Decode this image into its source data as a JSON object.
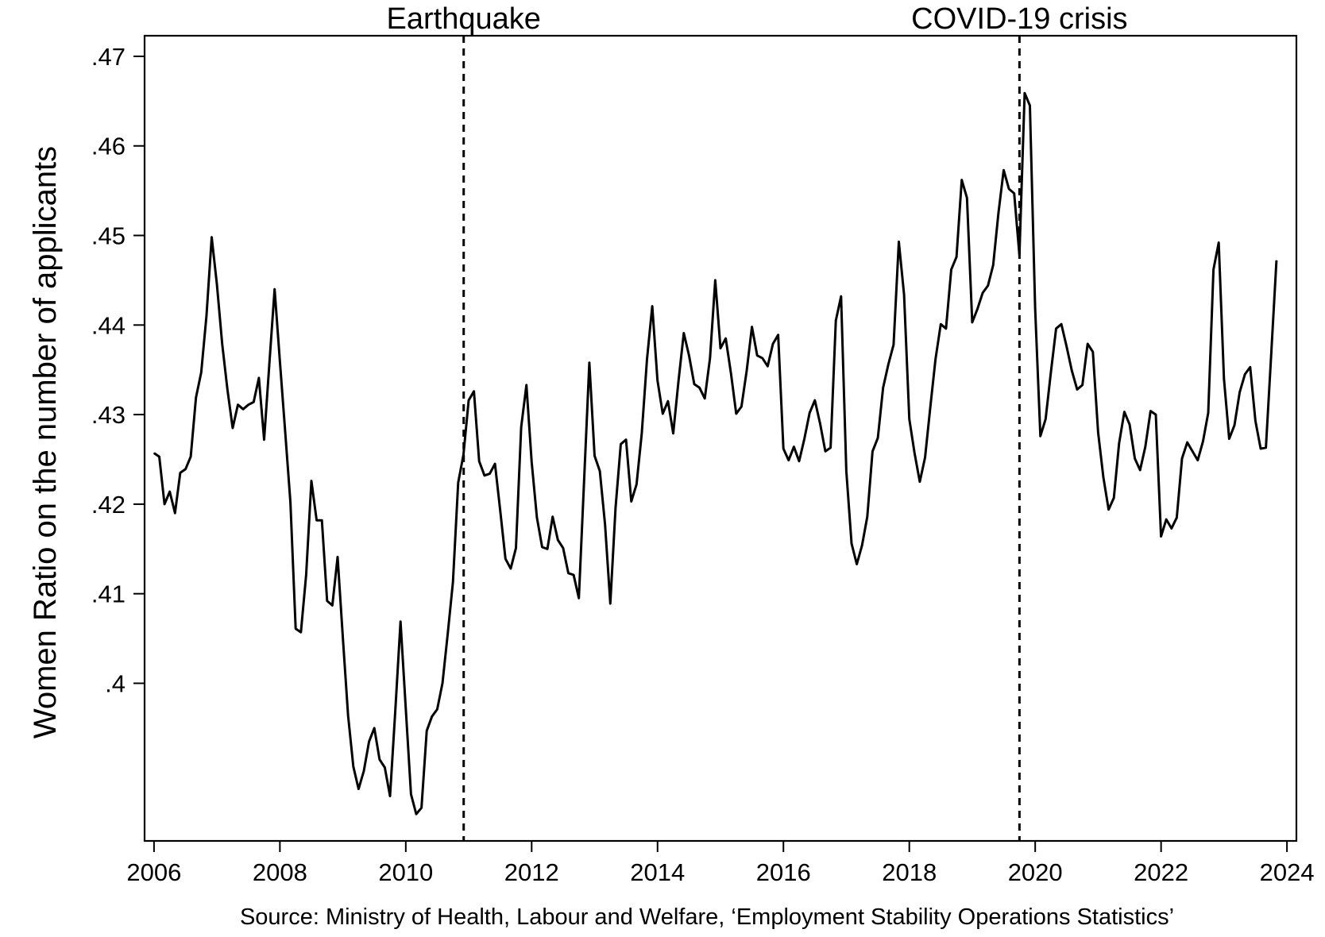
{
  "chart_data": {
    "type": "line",
    "title": "",
    "xlabel": "",
    "ylabel": "Women Ratio on the number of applicants",
    "source_note": "Source: Ministry of Health, Labour and Welfare, ‘Employment Stability Operations Statistics’",
    "xlim": [
      2005.85,
      2024.15
    ],
    "ylim": [
      0.3824,
      0.4723
    ],
    "x_ticks": [
      {
        "value": 2006,
        "label": "2006"
      },
      {
        "value": 2008,
        "label": "2008"
      },
      {
        "value": 2010,
        "label": "2010"
      },
      {
        "value": 2012,
        "label": "2012"
      },
      {
        "value": 2014,
        "label": "2014"
      },
      {
        "value": 2016,
        "label": "2016"
      },
      {
        "value": 2018,
        "label": "2018"
      },
      {
        "value": 2020,
        "label": "2020"
      },
      {
        "value": 2022,
        "label": "2022"
      },
      {
        "value": 2024,
        "label": "2024"
      }
    ],
    "y_ticks": [
      {
        "value": 0.4,
        "label": ".4"
      },
      {
        "value": 0.41,
        "label": ".41"
      },
      {
        "value": 0.42,
        "label": ".42"
      },
      {
        "value": 0.43,
        "label": ".43"
      },
      {
        "value": 0.44,
        "label": ".44"
      },
      {
        "value": 0.45,
        "label": ".45"
      },
      {
        "value": 0.46,
        "label": ".46"
      },
      {
        "value": 0.47,
        "label": ".47"
      }
    ],
    "grid": false,
    "legend": "none",
    "annotations": [
      {
        "label": "Earthquake",
        "x": 2010.92,
        "style": "dashed vertical line"
      },
      {
        "label": "COVID-19 crisis",
        "x": 2019.75,
        "style": "dashed vertical line"
      }
    ],
    "series": [
      {
        "color": "#000000",
        "x_start": 2006.0,
        "x_step": 0.08333,
        "values": [
          0.4257,
          0.4253,
          0.42,
          0.4214,
          0.419,
          0.4235,
          0.4239,
          0.4253,
          0.4319,
          0.4347,
          0.441,
          0.4498,
          0.4445,
          0.4379,
          0.4328,
          0.4285,
          0.4311,
          0.4306,
          0.4311,
          0.4314,
          0.4341,
          0.4272,
          0.4357,
          0.444,
          0.436,
          0.4281,
          0.4202,
          0.4061,
          0.4057,
          0.4121,
          0.4226,
          0.4182,
          0.4182,
          0.4092,
          0.4087,
          0.4141,
          0.4051,
          0.3964,
          0.3907,
          0.3882,
          0.3902,
          0.3935,
          0.395,
          0.3915,
          0.3906,
          0.3874,
          0.3969,
          0.4069,
          0.3972,
          0.3876,
          0.3854,
          0.3861,
          0.3947,
          0.3963,
          0.3971,
          0.4,
          0.4055,
          0.4113,
          0.4224,
          0.4255,
          0.4316,
          0.4326,
          0.4248,
          0.4232,
          0.4234,
          0.4245,
          0.4193,
          0.4139,
          0.4128,
          0.4151,
          0.4286,
          0.4333,
          0.4247,
          0.4185,
          0.4152,
          0.415,
          0.4186,
          0.416,
          0.4151,
          0.4123,
          0.4121,
          0.4095,
          0.4226,
          0.4358,
          0.4254,
          0.4237,
          0.4177,
          0.4089,
          0.4196,
          0.4267,
          0.4272,
          0.4203,
          0.4222,
          0.4279,
          0.4362,
          0.4421,
          0.4338,
          0.4301,
          0.4315,
          0.4279,
          0.4338,
          0.4391,
          0.4366,
          0.4334,
          0.433,
          0.4318,
          0.4363,
          0.445,
          0.4374,
          0.4385,
          0.4346,
          0.4301,
          0.4309,
          0.4349,
          0.4398,
          0.4366,
          0.4363,
          0.4354,
          0.4379,
          0.4389,
          0.4262,
          0.4249,
          0.4264,
          0.4248,
          0.4273,
          0.4302,
          0.4316,
          0.429,
          0.4259,
          0.4263,
          0.4405,
          0.4432,
          0.4237,
          0.4156,
          0.4133,
          0.4154,
          0.4186,
          0.4259,
          0.4274,
          0.433,
          0.4356,
          0.4378,
          0.4493,
          0.4434,
          0.4295,
          0.4257,
          0.4225,
          0.4252,
          0.4308,
          0.4362,
          0.4401,
          0.4396,
          0.4462,
          0.4476,
          0.4562,
          0.4542,
          0.4403,
          0.4418,
          0.4436,
          0.4444,
          0.4467,
          0.4525,
          0.4573,
          0.4552,
          0.4547,
          0.4478,
          0.4659,
          0.4645,
          0.4419,
          0.4276,
          0.4295,
          0.4347,
          0.4396,
          0.4401,
          0.4376,
          0.4349,
          0.4328,
          0.4333,
          0.4379,
          0.437,
          0.428,
          0.423,
          0.4194,
          0.4207,
          0.4268,
          0.4303,
          0.4289,
          0.4251,
          0.4238,
          0.4264,
          0.4304,
          0.43,
          0.4164,
          0.4183,
          0.4173,
          0.4185,
          0.4251,
          0.4269,
          0.4259,
          0.4249,
          0.427,
          0.4302,
          0.4462,
          0.4492,
          0.434,
          0.4273,
          0.4288,
          0.4325,
          0.4345,
          0.4353,
          0.4293,
          0.4262,
          0.4263,
          0.4366,
          0.4472
        ]
      }
    ]
  }
}
